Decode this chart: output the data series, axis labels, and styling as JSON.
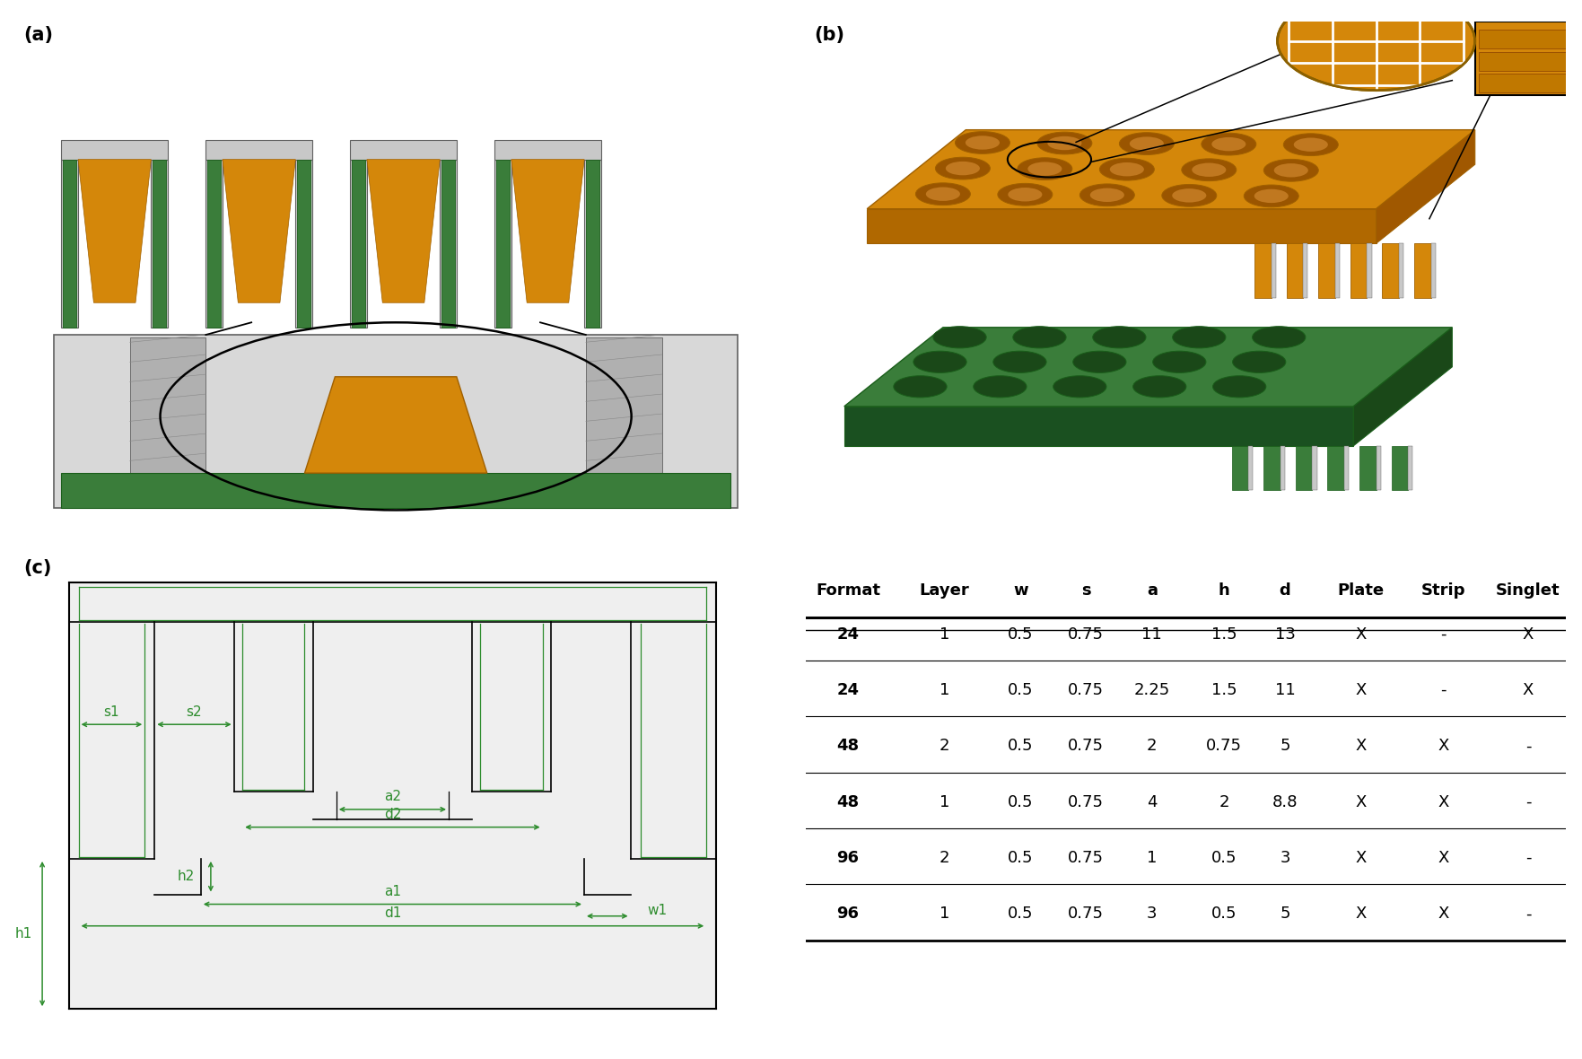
{
  "panel_labels": [
    "(a)",
    "(b)",
    "(c)"
  ],
  "table_headers": [
    "Format",
    "Layer",
    "w",
    "s",
    "a",
    "h",
    "d",
    "Plate",
    "Strip",
    "Singlet"
  ],
  "table_rows": [
    [
      "24",
      "1",
      "0.5",
      "0.75",
      "11",
      "1.5",
      "13",
      "X",
      "-",
      "X"
    ],
    [
      "24",
      "1",
      "0.5",
      "0.75",
      "2.25",
      "1.5",
      "11",
      "X",
      "-",
      "X"
    ],
    [
      "48",
      "2",
      "0.5",
      "0.75",
      "2",
      "0.75",
      "5",
      "X",
      "X",
      "-"
    ],
    [
      "48",
      "1",
      "0.5",
      "0.75",
      "4",
      "2",
      "8.8",
      "X",
      "X",
      "-"
    ],
    [
      "96",
      "2",
      "0.5",
      "0.75",
      "1",
      "0.5",
      "3",
      "X",
      "X",
      "-"
    ],
    [
      "96",
      "1",
      "0.5",
      "0.75",
      "3",
      "0.5",
      "5",
      "X",
      "X",
      "-"
    ]
  ],
  "green_color": "#3a7d3a",
  "green_dark": "#1a5e1a",
  "green_line": "#2d8c2d",
  "orange_main": "#d4870a",
  "orange_dark": "#a06000",
  "orange_light": "#e8a030",
  "gray_main": "#909090",
  "gray_light": "#c8c8c8",
  "gray_dark": "#606060",
  "bg_color": "#ffffff",
  "label_fontsize": 15,
  "table_fontsize": 13,
  "diagram_label_fontsize": 11
}
